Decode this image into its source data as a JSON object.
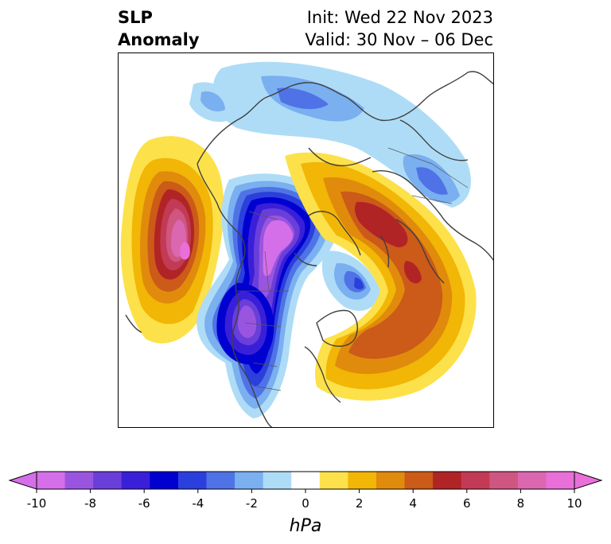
{
  "title": {
    "left_line1": "SLP",
    "left_line2": "Anomaly",
    "init": "Init: Wed 22 Nov 2023",
    "valid": "Valid: 30 Nov – 06 Dec"
  },
  "colorbar": {
    "unit_label": "hPa",
    "ticks": [
      "-10",
      "-8",
      "-6",
      "-4",
      "-2",
      "0",
      "2",
      "4",
      "6",
      "8",
      "10"
    ],
    "tick_values": [
      -10,
      -8,
      -6,
      -4,
      -2,
      0,
      2,
      4,
      6,
      8,
      10
    ],
    "extend": "both",
    "colors": [
      "#d56fe9",
      "#9a55e0",
      "#6a3ed9",
      "#3a1fd9",
      "#0000d0",
      "#2b3fdc",
      "#4f73e6",
      "#7aaff0",
      "#aedcf7",
      "#ffffff",
      "#fde14a",
      "#f2b606",
      "#e08b0c",
      "#cc5a18",
      "#b02426",
      "#c23a55",
      "#ce5680",
      "#da67b0",
      "#e870d8"
    ],
    "under_color": "#d56fe9",
    "over_color": "#e870d8"
  }
}
